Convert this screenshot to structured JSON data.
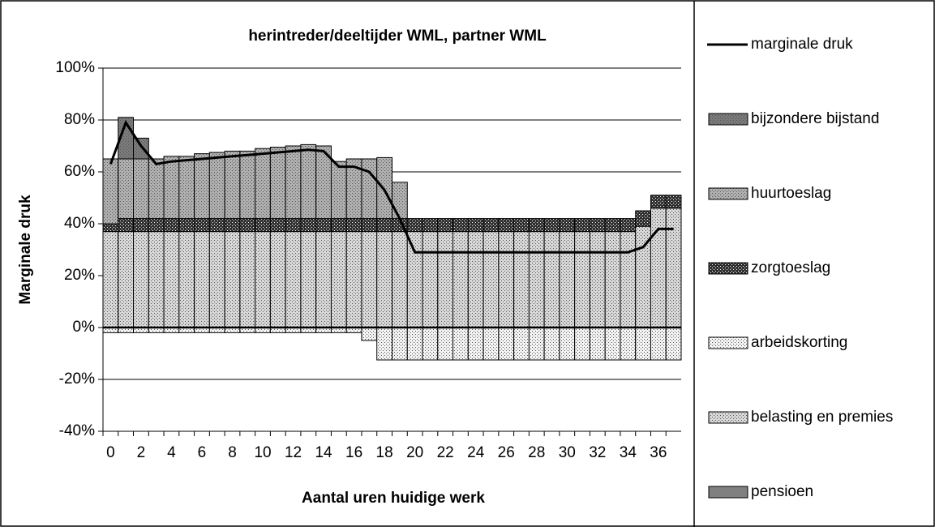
{
  "chart_data": {
    "type": "bar",
    "title": "herintreder/deeltijder WML, partner WML",
    "y_label": "Marginale druk",
    "x_label": "Aantal uren huidige werk",
    "categories": [
      0,
      null,
      2,
      null,
      4,
      null,
      6,
      null,
      8,
      null,
      10,
      null,
      12,
      null,
      14,
      null,
      16,
      null,
      18,
      null,
      20,
      null,
      22,
      null,
      24,
      null,
      26,
      null,
      28,
      null,
      30,
      null,
      32,
      null,
      34,
      null,
      36,
      null
    ],
    "ylim": [
      -40,
      100
    ],
    "yticks": [
      {
        "value": -40,
        "label": "-40%"
      },
      {
        "value": -20,
        "label": "-20%"
      },
      {
        "value": 0,
        "label": "0%"
      },
      {
        "value": 20,
        "label": "20%"
      },
      {
        "value": 40,
        "label": "40%"
      },
      {
        "value": 60,
        "label": "60%"
      },
      {
        "value": 80,
        "label": "80%"
      },
      {
        "value": 100,
        "label": "100%"
      }
    ],
    "grid": true,
    "series": [
      {
        "name": "pensioen",
        "color": "#808080",
        "values": [
          0,
          0,
          0,
          0,
          0,
          0,
          0,
          0,
          0,
          0,
          0,
          0,
          0,
          0,
          0,
          0,
          0,
          0,
          0,
          0,
          0,
          0,
          0,
          0,
          0,
          0,
          0,
          0,
          0,
          0,
          0,
          0,
          0,
          0,
          0,
          0,
          0,
          0
        ]
      },
      {
        "name": "belasting en premies",
        "color": "#d8d8d8",
        "values": [
          37,
          37,
          37,
          37,
          37,
          37,
          37,
          37,
          37,
          37,
          37,
          37,
          37,
          37,
          37,
          37,
          37,
          37,
          37,
          37,
          37,
          37,
          37,
          37,
          37,
          37,
          37,
          37,
          37,
          37,
          37,
          37,
          37,
          37,
          37,
          39,
          46,
          46
        ]
      },
      {
        "name": "arbeidskorting",
        "color": "#f4f4f4",
        "values": [
          -2,
          -2,
          -2,
          -2,
          -2,
          -2,
          -2,
          -2,
          -2,
          -2,
          -2,
          -2,
          -2,
          -2,
          -2,
          -2,
          -2,
          -5,
          -12.5,
          -12.5,
          -12.5,
          -12.5,
          -12.5,
          -12.5,
          -12.5,
          -12.5,
          -12.5,
          -12.5,
          -12.5,
          -12.5,
          -12.5,
          -12.5,
          -12.5,
          -12.5,
          -12.5,
          -12.5,
          -12.5,
          -12.5
        ]
      },
      {
        "name": "zorgtoeslag",
        "color": "#303030",
        "values": [
          3,
          5,
          5,
          5,
          5,
          5,
          5,
          5,
          5,
          5,
          5,
          5,
          5,
          5,
          5,
          5,
          5,
          5,
          5,
          5,
          5,
          5,
          5,
          5,
          5,
          5,
          5,
          5,
          5,
          5,
          5,
          5,
          5,
          5,
          5,
          6,
          5,
          5
        ]
      },
      {
        "name": "huurtoeslag",
        "color": "#b0b0b0",
        "values": [
          25,
          23,
          23,
          23,
          24,
          24,
          25,
          25.5,
          26,
          26,
          27,
          27.5,
          28,
          28.5,
          28,
          22,
          23,
          23,
          23.5,
          14,
          0,
          0,
          0,
          0,
          0,
          0,
          0,
          0,
          0,
          0,
          0,
          0,
          0,
          0,
          0,
          0,
          0,
          0
        ]
      },
      {
        "name": "bijzondere bijstand",
        "color": "#7a7a7a",
        "values": [
          0,
          16,
          8,
          0,
          0,
          0,
          0,
          0,
          0,
          0,
          0,
          0,
          0,
          0,
          0,
          0,
          0,
          0,
          0,
          0,
          0,
          0,
          0,
          0,
          0,
          0,
          0,
          0,
          0,
          0,
          0,
          0,
          0,
          0,
          0,
          0,
          0,
          0
        ]
      },
      {
        "name": "marginale druk",
        "type": "line",
        "color": "#000000",
        "values": [
          63,
          79,
          70,
          63,
          64,
          64.5,
          65,
          65.5,
          66,
          66.5,
          67,
          67.5,
          68,
          68.5,
          68,
          62,
          62,
          60,
          53,
          42,
          29,
          29,
          29,
          29,
          29,
          29,
          29,
          29,
          29,
          29,
          29,
          29,
          29,
          29,
          29,
          31,
          38,
          38
        ]
      }
    ]
  }
}
